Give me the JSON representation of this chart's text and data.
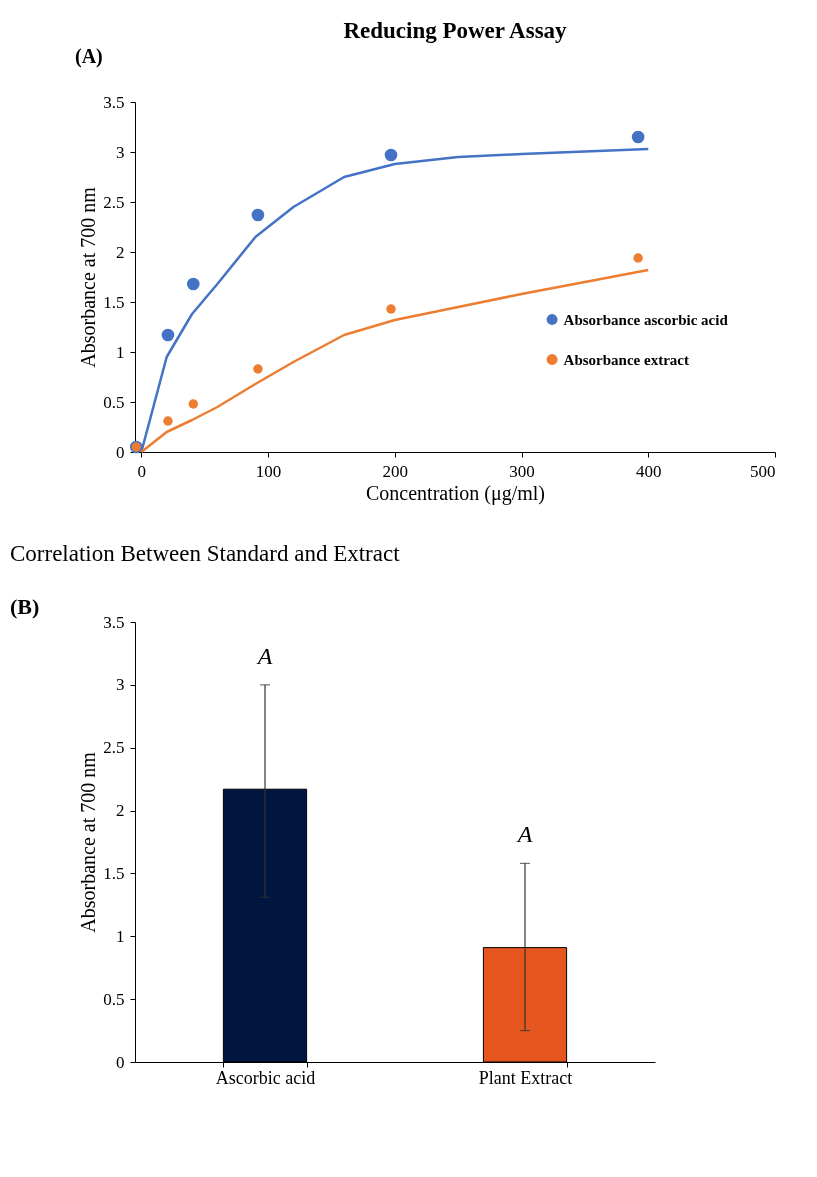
{
  "chart_data": [
    {
      "type": "scatter",
      "title": "Reducing Power Assay",
      "xlabel": "Concentration (μg/ml)",
      "ylabel": "Absorbance at 700 nm",
      "xlim": [
        -5,
        500
      ],
      "xticks": [
        0,
        100,
        200,
        300,
        400,
        500
      ],
      "ylim": [
        0,
        3.5
      ],
      "yticks": [
        0,
        0.5,
        1,
        1.5,
        2,
        2.5,
        3,
        3.5
      ],
      "grid": false,
      "legend": "right",
      "marker": "circle",
      "annotations": [
        "(A)"
      ],
      "series": [
        {
          "name": "Absorbance ascorbic acid",
          "color": "#4472c4",
          "type": "scatter",
          "x": [
            -4,
            21,
            41,
            92,
            197,
            392
          ],
          "values": [
            0.05,
            1.17,
            1.68,
            2.37,
            2.97,
            3.15
          ]
        },
        {
          "name": "Absorbance extract",
          "color": "#ed7d31",
          "type": "scatter",
          "x": [
            -4,
            21,
            41,
            92,
            197,
            392
          ],
          "values": [
            0.05,
            0.31,
            0.48,
            0.83,
            1.43,
            1.94
          ]
        },
        {
          "color": "#4472c4",
          "type": "line",
          "line_style": "solid",
          "marker": "none",
          "x": [
            0,
            20,
            40,
            60,
            90,
            120,
            160,
            200,
            250,
            300,
            400
          ],
          "values": [
            0,
            0.95,
            1.38,
            1.68,
            2.15,
            2.45,
            2.75,
            2.88,
            2.95,
            2.98,
            3.03
          ]
        },
        {
          "color": "#ed7d31",
          "type": "line",
          "line_style": "solid",
          "marker": "none",
          "x": [
            0,
            20,
            40,
            60,
            90,
            120,
            160,
            200,
            250,
            300,
            400
          ],
          "values": [
            0,
            0.2,
            0.32,
            0.45,
            0.68,
            0.9,
            1.17,
            1.32,
            1.45,
            1.58,
            1.82
          ]
        }
      ]
    },
    {
      "type": "bar",
      "title": "Correlation  Between  Standard and Extract",
      "ylabel": "Absorbance at 700 nm",
      "categories": [
        "Ascorbic acid",
        "Plant Extract"
      ],
      "values": [
        2.17,
        0.91
      ],
      "colors": [
        "#001540",
        "#e5561e"
      ],
      "errors": [
        [
          1.31,
          3.0
        ],
        [
          0.25,
          1.58
        ]
      ],
      "ylim": [
        0,
        3.5
      ],
      "yticks": [
        0,
        0.5,
        1,
        1.5,
        2,
        2.5,
        3,
        3.5
      ],
      "grid": false,
      "annotations": [
        "(B)",
        "A",
        "A"
      ]
    }
  ]
}
